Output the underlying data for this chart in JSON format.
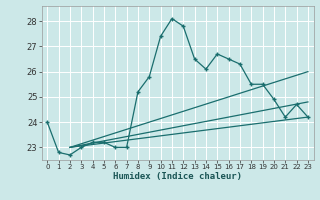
{
  "title": "",
  "xlabel": "Humidex (Indice chaleur)",
  "bg_color": "#cce8e8",
  "grid_color": "#ffffff",
  "line_color": "#1a6e6e",
  "xlim": [
    -0.5,
    23.5
  ],
  "ylim": [
    22.5,
    28.6
  ],
  "yticks": [
    23,
    24,
    25,
    26,
    27,
    28
  ],
  "xticks": [
    0,
    1,
    2,
    3,
    4,
    5,
    6,
    7,
    8,
    9,
    10,
    11,
    12,
    13,
    14,
    15,
    16,
    17,
    18,
    19,
    20,
    21,
    22,
    23
  ],
  "xtick_labels": [
    "0",
    "1",
    "2",
    "3",
    "4",
    "5",
    "6",
    "7",
    "8",
    "9",
    "10",
    "11",
    "12",
    "13",
    "14",
    "15",
    "16",
    "17",
    "18",
    "19",
    "20",
    "21",
    "22",
    "23"
  ],
  "series1_x": [
    0,
    1,
    2,
    3,
    4,
    5,
    6,
    7,
    8,
    9,
    10,
    11,
    12,
    13,
    14,
    15,
    16,
    17,
    18,
    19,
    20,
    21,
    22,
    23
  ],
  "series1_y": [
    24.0,
    22.8,
    22.7,
    23.0,
    23.2,
    23.2,
    23.0,
    23.0,
    25.2,
    25.8,
    27.4,
    28.1,
    27.8,
    26.5,
    26.1,
    26.7,
    26.5,
    26.3,
    25.5,
    25.5,
    24.9,
    24.2,
    24.7,
    24.2
  ],
  "series2_x": [
    2,
    23
  ],
  "series2_y": [
    23.0,
    26.0
  ],
  "series3_x": [
    2,
    23
  ],
  "series3_y": [
    23.0,
    24.8
  ],
  "series4_x": [
    2,
    23
  ],
  "series4_y": [
    23.0,
    24.2
  ]
}
